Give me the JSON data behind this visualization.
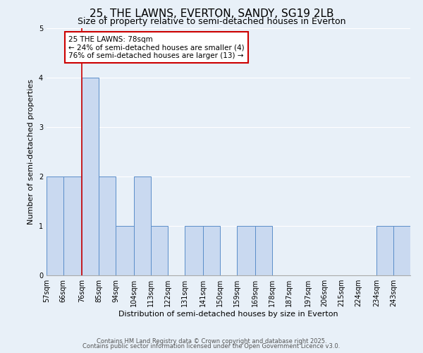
{
  "title": "25, THE LAWNS, EVERTON, SANDY, SG19 2LB",
  "subtitle": "Size of property relative to semi-detached houses in Everton",
  "xlabel": "Distribution of semi-detached houses by size in Everton",
  "ylabel": "Number of semi-detached properties",
  "bins": [
    "57sqm",
    "66sqm",
    "76sqm",
    "85sqm",
    "94sqm",
    "104sqm",
    "113sqm",
    "122sqm",
    "131sqm",
    "141sqm",
    "150sqm",
    "159sqm",
    "169sqm",
    "178sqm",
    "187sqm",
    "197sqm",
    "206sqm",
    "215sqm",
    "224sqm",
    "234sqm",
    "243sqm"
  ],
  "bin_edges": [
    57,
    66,
    76,
    85,
    94,
    104,
    113,
    122,
    131,
    141,
    150,
    159,
    169,
    178,
    187,
    197,
    206,
    215,
    224,
    234,
    243,
    252
  ],
  "values": [
    2,
    2,
    4,
    2,
    1,
    2,
    1,
    0,
    1,
    1,
    0,
    1,
    1,
    0,
    0,
    0,
    0,
    0,
    0,
    1,
    1
  ],
  "bar_color": "#c9d9f0",
  "bar_edge_color": "#5b8ec9",
  "background_color": "#e8f0f8",
  "grid_color": "#ffffff",
  "property_line_x": 76,
  "property_line_color": "#cc0000",
  "annotation_title": "25 THE LAWNS: 78sqm",
  "annotation_line1": "← 24% of semi-detached houses are smaller (4)",
  "annotation_line2": "76% of semi-detached houses are larger (13) →",
  "annotation_box_color": "#ffffff",
  "annotation_box_edge_color": "#cc0000",
  "ylim": [
    0,
    5
  ],
  "yticks": [
    0,
    1,
    2,
    3,
    4,
    5
  ],
  "footer1": "Contains HM Land Registry data © Crown copyright and database right 2025.",
  "footer2": "Contains public sector information licensed under the Open Government Licence v3.0.",
  "title_fontsize": 11,
  "subtitle_fontsize": 9,
  "axis_label_fontsize": 8,
  "tick_fontsize": 7,
  "annotation_fontsize": 7.5,
  "footer_fontsize": 6
}
